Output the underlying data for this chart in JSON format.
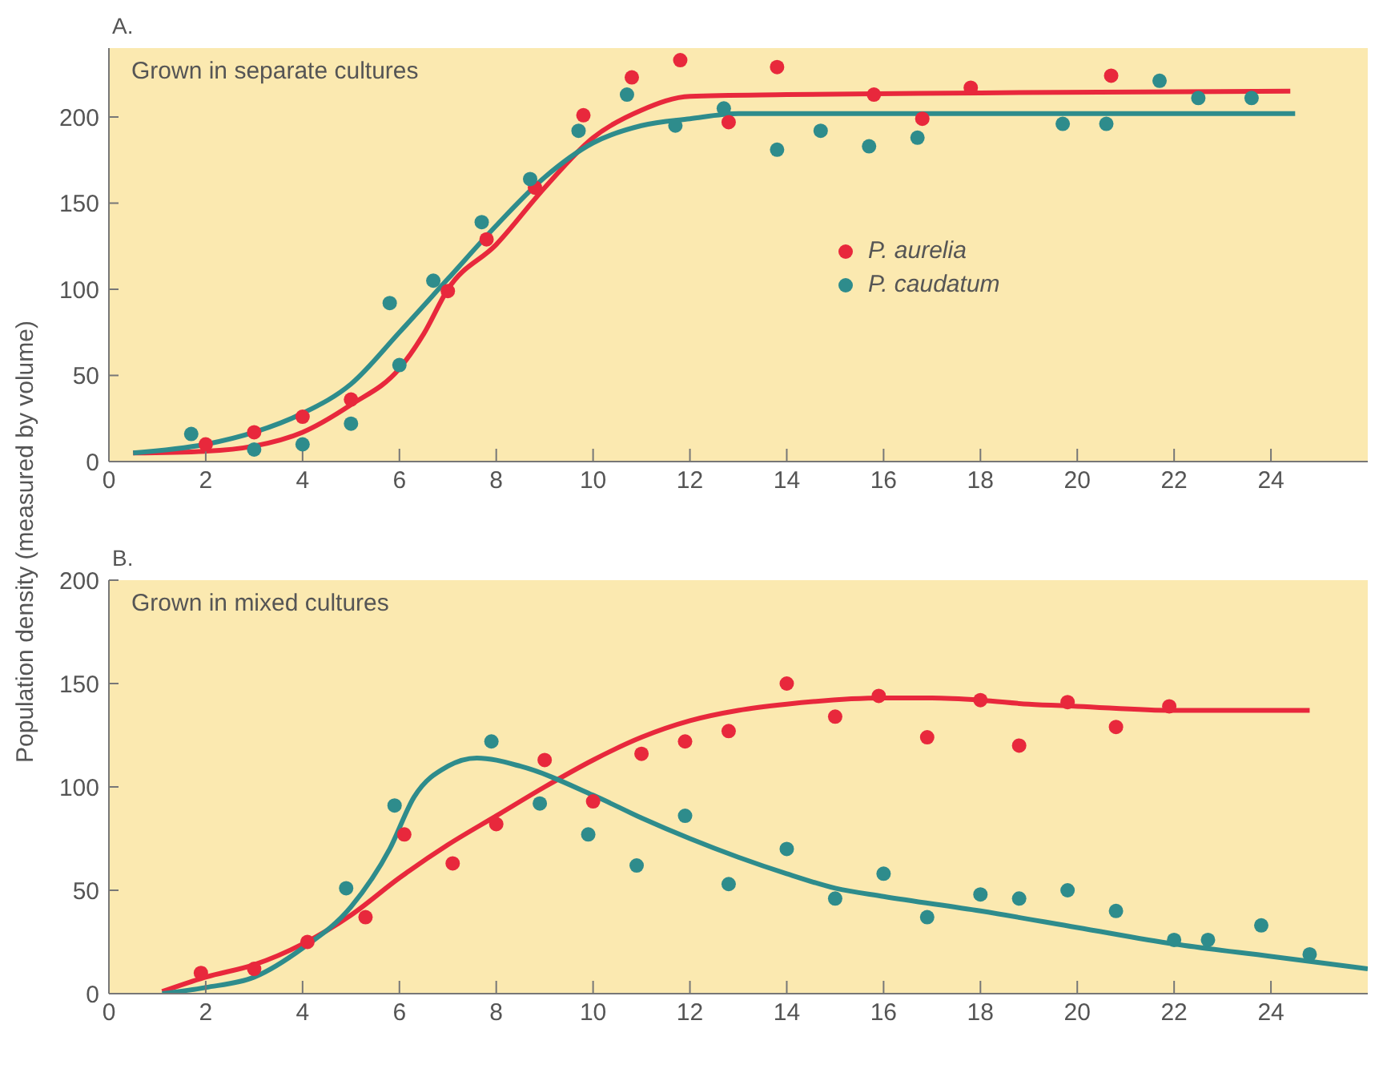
{
  "chart_data": [
    {
      "type": "scatter",
      "title": "A.",
      "ylabel": "Population density (measured by volume)",
      "annotations": [
        "Grown in separate cultures"
      ],
      "xlim": [
        0,
        26
      ],
      "xticks": [
        0,
        2,
        4,
        6,
        8,
        10,
        12,
        14,
        16,
        18,
        20,
        22,
        24
      ],
      "ylim": [
        0,
        240
      ],
      "yticks": [
        0,
        50,
        100,
        150,
        200
      ],
      "legend": "right",
      "grid": false,
      "series": [
        {
          "name": "P. aurelia",
          "marker": "circle",
          "color": "#e8283c",
          "x": [
            2,
            3,
            4,
            5,
            7,
            7.8,
            8.8,
            9.8,
            10.8,
            11.8,
            12.8,
            13.8,
            15.8,
            16.8,
            17.8,
            20.7
          ],
          "values": [
            10,
            17,
            26,
            36,
            99,
            129,
            159,
            201,
            223,
            233,
            197,
            229,
            213,
            199,
            217,
            224
          ]
        },
        {
          "name": "P. caudatum",
          "marker": "circle",
          "color": "#2e8c8c",
          "x": [
            1.7,
            3,
            4,
            5,
            5.8,
            6,
            6.7,
            7.7,
            8.7,
            9.7,
            10.7,
            11.7,
            12.7,
            13.8,
            14.7,
            15.7,
            16.7,
            19.7,
            20.6,
            21.7,
            22.5,
            23.6
          ],
          "values": [
            16,
            7,
            10,
            22,
            92,
            56,
            105,
            139,
            164,
            192,
            213,
            195,
            205,
            181,
            192,
            183,
            188,
            196,
            196,
            221,
            211,
            211
          ]
        },
        {
          "type": "line",
          "marker": "none",
          "line_style": "solid",
          "color": "#e8283c",
          "x": [
            0.5,
            2,
            3,
            4,
            5,
            6,
            6.5,
            7,
            8,
            9,
            10,
            11,
            12,
            14,
            18,
            24.4
          ],
          "values": [
            5,
            6,
            9,
            17,
            33,
            54,
            74,
            100,
            126,
            159,
            188,
            204,
            212,
            213,
            214,
            215
          ]
        },
        {
          "type": "line",
          "marker": "none",
          "line_style": "solid",
          "color": "#2e8c8c",
          "x": [
            0.5,
            2,
            3,
            4,
            5,
            6,
            7,
            8,
            9,
            10,
            11,
            12,
            13,
            16,
            24.5
          ],
          "values": [
            5,
            10,
            17,
            28,
            45,
            75,
            106,
            137,
            165,
            185,
            195,
            199,
            202,
            202,
            202
          ]
        }
      ]
    },
    {
      "type": "scatter",
      "title": "B.",
      "annotations": [
        "Grown in mixed cultures"
      ],
      "xlim": [
        0,
        26
      ],
      "xticks": [
        0,
        2,
        4,
        6,
        8,
        10,
        12,
        14,
        16,
        18,
        20,
        22,
        24
      ],
      "ylim": [
        0,
        200
      ],
      "yticks": [
        0,
        50,
        100,
        150,
        200
      ],
      "grid": false,
      "series": [
        {
          "marker": "circle",
          "color": "#e8283c",
          "x": [
            1.9,
            3,
            4.1,
            5.3,
            6.1,
            7.1,
            8,
            9,
            10,
            11,
            11.9,
            12.8,
            14,
            15,
            15.9,
            16.9,
            18,
            18.8,
            19.8,
            20.8,
            21.9
          ],
          "values": [
            10,
            12,
            25,
            37,
            77,
            63,
            82,
            113,
            93,
            116,
            122,
            127,
            150,
            134,
            144,
            124,
            142,
            120,
            141,
            129,
            139
          ]
        },
        {
          "marker": "circle",
          "color": "#2e8c8c",
          "x": [
            4.9,
            5.9,
            7.9,
            8.9,
            9.9,
            10.9,
            11.9,
            12.8,
            14,
            15,
            16,
            16.9,
            18,
            18.8,
            19.8,
            20.8,
            22,
            22.7,
            23.8,
            24.8
          ],
          "values": [
            51,
            91,
            122,
            92,
            77,
            62,
            86,
            53,
            70,
            46,
            58,
            37,
            48,
            46,
            50,
            40,
            26,
            26,
            33,
            19
          ]
        },
        {
          "type": "line",
          "marker": "none",
          "line_style": "solid",
          "color": "#e8283c",
          "x": [
            1.1,
            2,
            3,
            4,
            5,
            6,
            7,
            8,
            9,
            10,
            11,
            12,
            13,
            14,
            16,
            17,
            18,
            19,
            20,
            22,
            24.8
          ],
          "values": [
            1,
            8,
            14,
            24,
            38,
            56,
            72,
            86,
            100,
            113,
            124,
            132,
            137,
            140,
            143,
            143,
            142,
            140,
            139,
            137,
            137
          ]
        },
        {
          "type": "line",
          "marker": "none",
          "line_style": "solid",
          "color": "#2e8c8c",
          "x": [
            1.1,
            2,
            3,
            4,
            5,
            5.8,
            6.3,
            7,
            7.6,
            8.5,
            10,
            11,
            12,
            13,
            14,
            15,
            16,
            18,
            20,
            22,
            24,
            26
          ],
          "values": [
            0,
            3,
            8,
            22,
            42,
            70,
            95,
            110,
            114,
            110,
            96,
            85,
            75,
            66,
            58,
            51,
            47,
            40,
            32,
            24,
            18,
            12
          ]
        }
      ]
    }
  ]
}
